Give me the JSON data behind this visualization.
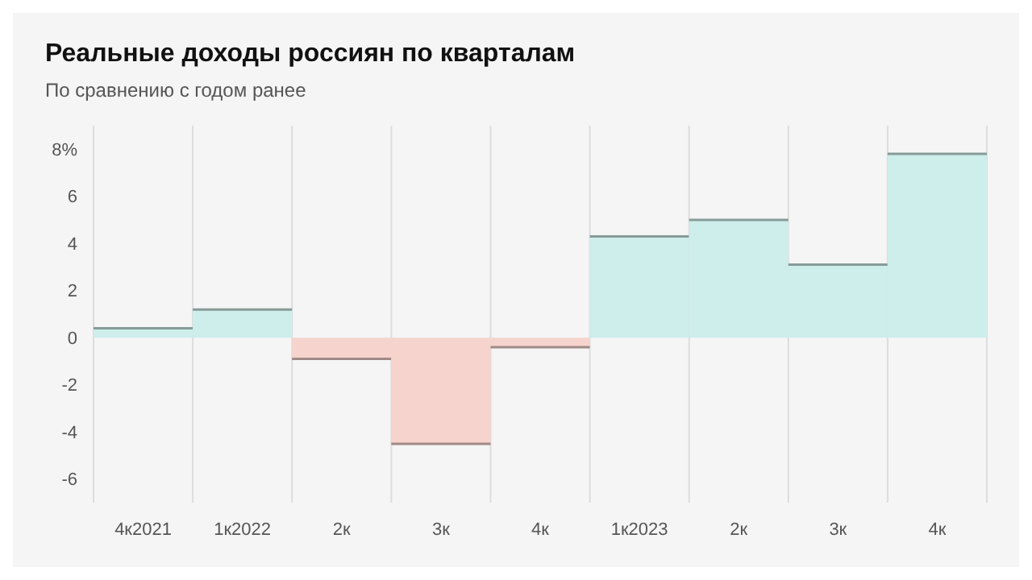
{
  "chart_data": {
    "type": "bar",
    "title": "Реальные доходы россиян по кварталам",
    "subtitle": "По сравнению с годом ранее",
    "categories": [
      "4к2021",
      "1к2022",
      "2к",
      "3к",
      "4к",
      "1к2023",
      "2к",
      "3к",
      "4к"
    ],
    "values": [
      0.4,
      1.2,
      -0.9,
      -4.5,
      -0.4,
      4.3,
      5.0,
      3.1,
      7.8
    ],
    "colors": [
      "#cdeeea",
      "#cdeeea",
      "#f6d3cd",
      "#f6d3cd",
      "#f6d3cd",
      "#cdeeea",
      "#cdeeea",
      "#cdeeea",
      "#cdeeea"
    ],
    "ylim": [
      -7,
      9
    ],
    "yticks": [
      -6,
      -4,
      -2,
      0,
      2,
      4,
      6,
      {
        "value": 8,
        "label": "8%"
      }
    ],
    "grid": "x"
  }
}
